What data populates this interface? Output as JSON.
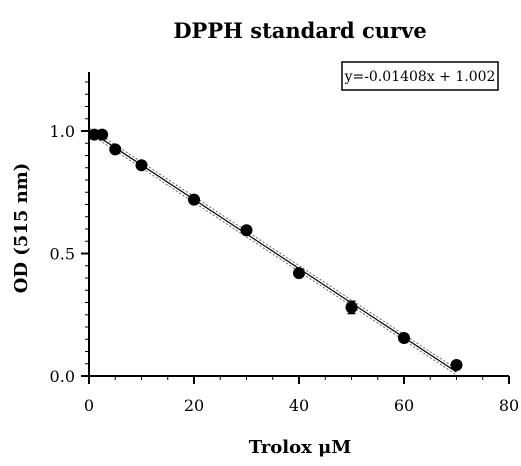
{
  "chart_data": {
    "type": "scatter",
    "title": "DPPH standard curve",
    "xlabel": "Trolox μM",
    "ylabel": "OD (515 nm)",
    "xlim": [
      0,
      80
    ],
    "ylim": [
      0.0,
      1.25
    ],
    "x_ticks": [
      0,
      20,
      40,
      60,
      80
    ],
    "x_tick_labels": [
      "0",
      "20",
      "40",
      "60",
      "80"
    ],
    "y_ticks": [
      0.0,
      0.5,
      1.0
    ],
    "y_tick_labels": [
      "0.0",
      "0.5",
      "1.0"
    ],
    "grid": false,
    "legend": "none",
    "equation": "y=-0.01408x + 1.002",
    "fit": {
      "slope": -0.01408,
      "intercept": 1.002,
      "x_range": [
        0,
        70
      ]
    },
    "points": [
      {
        "x": 1,
        "y": 0.985,
        "err": 0.01
      },
      {
        "x": 2.5,
        "y": 0.985,
        "err": 0.015
      },
      {
        "x": 5,
        "y": 0.925,
        "err": 0.01
      },
      {
        "x": 10,
        "y": 0.86,
        "err": 0.01
      },
      {
        "x": 20,
        "y": 0.72,
        "err": 0.01
      },
      {
        "x": 30,
        "y": 0.595,
        "err": 0.01
      },
      {
        "x": 40,
        "y": 0.42,
        "err": 0.01
      },
      {
        "x": 50,
        "y": 0.28,
        "err": 0.025
      },
      {
        "x": 60,
        "y": 0.155,
        "err": 0.01
      },
      {
        "x": 70,
        "y": 0.045,
        "err": 0.01
      }
    ],
    "colors": {
      "points": "#000000",
      "fit_line": "#000000",
      "confidence_band": "#666666"
    }
  }
}
